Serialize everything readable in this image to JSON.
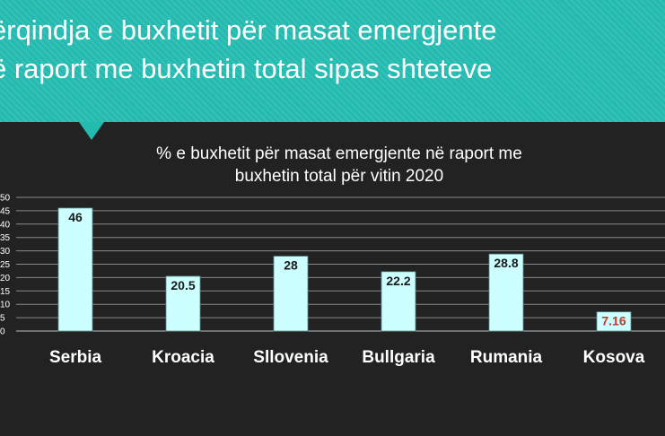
{
  "header": {
    "title_line_1": "ërqindja e buxhetit për masat emergjente",
    "title_line_2": "ë raport me buxhetin total sipas shteteve"
  },
  "colors": {
    "banner": "#23bab0",
    "background": "#222222",
    "bar_fill": "#ccffff",
    "bar_stroke": "#5a8a8a",
    "highlight_label": "#c0392b"
  },
  "chart_data": {
    "type": "bar",
    "title": "% e buxhetit për masat emergjente në raport me buxhetin total për vitin 2020",
    "title_lines": [
      "% e buxhetit për masat emergjente në raport me",
      "buxhetin total për vitin 2020"
    ],
    "categories": [
      "Serbia",
      "Kroacia",
      "Sllovenia",
      "Bullgaria",
      "Rumania",
      "Kosova"
    ],
    "values": [
      46,
      20.5,
      28,
      22.2,
      28.8,
      7.16
    ],
    "data_labels": [
      "46",
      "20.5",
      "28",
      "22.2",
      "28.8",
      "7.16"
    ],
    "highlight_index": 5,
    "ylim": [
      0,
      50
    ],
    "yticks": [
      0,
      5,
      10,
      15,
      20,
      25,
      30,
      35,
      40,
      45,
      50
    ],
    "grid": true,
    "legend": "none",
    "xlabel": "",
    "ylabel": ""
  }
}
